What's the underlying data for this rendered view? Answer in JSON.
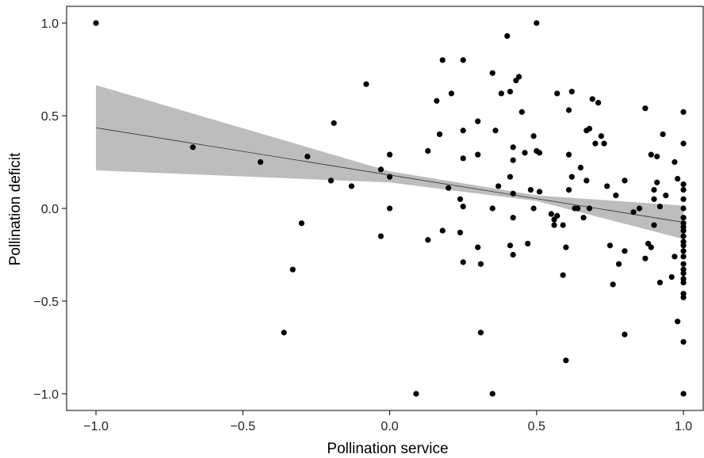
{
  "chart_data": {
    "type": "scatter",
    "xlabel": "Pollination service",
    "ylabel": "Pollination deficit",
    "xlim": [
      -1.1,
      1.07
    ],
    "ylim": [
      -1.09,
      1.09
    ],
    "x_ticks": [
      -1.0,
      -0.5,
      0.0,
      0.5,
      1.0
    ],
    "x_tick_labels": [
      "−1.0",
      "−0.5",
      "0.0",
      "0.5",
      "1.0"
    ],
    "y_ticks": [
      -1.0,
      -0.5,
      0.0,
      0.5,
      1.0
    ],
    "y_tick_labels": [
      "−1.0",
      "−0.5",
      "0.0",
      "0.5",
      "1.0"
    ],
    "grid": false,
    "legend": "none",
    "colors": {
      "points": "#000000",
      "fit_line": "#333333",
      "confidence_band": "#bdbdbd"
    },
    "fit": {
      "line": [
        [
          -1.0,
          0.435
        ],
        [
          1.0,
          -0.075
        ]
      ],
      "ci_upper": [
        [
          -1.0,
          0.665
        ],
        [
          0.0,
          0.2
        ],
        [
          0.5,
          0.07
        ],
        [
          1.0,
          0.015
        ]
      ],
      "ci_lower": [
        [
          -1.0,
          0.205
        ],
        [
          0.0,
          0.14
        ],
        [
          0.5,
          0.04
        ],
        [
          1.0,
          -0.165
        ]
      ]
    },
    "points": [
      [
        -1.0,
        1.0
      ],
      [
        -0.67,
        0.33
      ],
      [
        -0.44,
        0.25
      ],
      [
        -0.36,
        -0.67
      ],
      [
        -0.33,
        -0.33
      ],
      [
        -0.3,
        -0.08
      ],
      [
        -0.28,
        0.28
      ],
      [
        -0.2,
        0.15
      ],
      [
        -0.19,
        0.46
      ],
      [
        -0.13,
        0.12
      ],
      [
        -0.08,
        0.67
      ],
      [
        -0.03,
        0.21
      ],
      [
        -0.03,
        -0.15
      ],
      [
        0.0,
        0.0
      ],
      [
        0.0,
        0.17
      ],
      [
        0.0,
        0.29
      ],
      [
        0.09,
        -1.0
      ],
      [
        0.13,
        0.31
      ],
      [
        0.13,
        -0.17
      ],
      [
        0.16,
        0.58
      ],
      [
        0.17,
        0.4
      ],
      [
        0.18,
        0.8
      ],
      [
        0.18,
        -0.12
      ],
      [
        0.2,
        0.11
      ],
      [
        0.21,
        0.62
      ],
      [
        0.24,
        -0.13
      ],
      [
        0.24,
        0.05
      ],
      [
        0.25,
        0.27
      ],
      [
        0.25,
        0.42
      ],
      [
        0.25,
        -0.29
      ],
      [
        0.25,
        0.8
      ],
      [
        0.25,
        0.01
      ],
      [
        0.3,
        0.47
      ],
      [
        0.3,
        0.29
      ],
      [
        0.3,
        -0.21
      ],
      [
        0.31,
        -0.3
      ],
      [
        0.31,
        -0.67
      ],
      [
        0.35,
        0.73
      ],
      [
        0.35,
        0.0
      ],
      [
        0.35,
        -1.0
      ],
      [
        0.36,
        0.42
      ],
      [
        0.37,
        0.12
      ],
      [
        0.38,
        0.62
      ],
      [
        0.4,
        0.93
      ],
      [
        0.41,
        0.63
      ],
      [
        0.41,
        0.17
      ],
      [
        0.41,
        -0.2
      ],
      [
        0.42,
        0.33
      ],
      [
        0.42,
        0.26
      ],
      [
        0.42,
        0.08
      ],
      [
        0.42,
        -0.25
      ],
      [
        0.42,
        -0.05
      ],
      [
        0.43,
        0.69
      ],
      [
        0.44,
        0.71
      ],
      [
        0.45,
        0.52
      ],
      [
        0.46,
        0.3
      ],
      [
        0.47,
        -0.19
      ],
      [
        0.48,
        0.1
      ],
      [
        0.49,
        0.39
      ],
      [
        0.49,
        0.0
      ],
      [
        0.5,
        1.0
      ],
      [
        0.5,
        0.31
      ],
      [
        0.51,
        0.3
      ],
      [
        0.51,
        0.09
      ],
      [
        0.55,
        -0.03
      ],
      [
        0.56,
        -0.06
      ],
      [
        0.56,
        -0.09
      ],
      [
        0.57,
        0.62
      ],
      [
        0.57,
        -0.04
      ],
      [
        0.59,
        -0.09
      ],
      [
        0.59,
        -0.36
      ],
      [
        0.6,
        -0.21
      ],
      [
        0.6,
        -0.82
      ],
      [
        0.61,
        0.53
      ],
      [
        0.61,
        0.29
      ],
      [
        0.61,
        0.1
      ],
      [
        0.62,
        0.63
      ],
      [
        0.62,
        0.17
      ],
      [
        0.63,
        0.0
      ],
      [
        0.64,
        0.0
      ],
      [
        0.65,
        0.22
      ],
      [
        0.66,
        -0.05
      ],
      [
        0.67,
        0.42
      ],
      [
        0.67,
        0.15
      ],
      [
        0.68,
        0.43
      ],
      [
        0.68,
        0.0
      ],
      [
        0.69,
        0.59
      ],
      [
        0.7,
        0.35
      ],
      [
        0.71,
        0.57
      ],
      [
        0.72,
        0.39
      ],
      [
        0.73,
        0.35
      ],
      [
        0.74,
        0.12
      ],
      [
        0.75,
        -0.2
      ],
      [
        0.76,
        -0.41
      ],
      [
        0.77,
        0.07
      ],
      [
        0.78,
        -0.3
      ],
      [
        0.8,
        0.15
      ],
      [
        0.8,
        -0.23
      ],
      [
        0.8,
        -0.68
      ],
      [
        0.83,
        -0.02
      ],
      [
        0.85,
        0.0
      ],
      [
        0.87,
        0.54
      ],
      [
        0.87,
        -0.27
      ],
      [
        0.88,
        -0.19
      ],
      [
        0.89,
        0.29
      ],
      [
        0.89,
        -0.21
      ],
      [
        0.9,
        0.1
      ],
      [
        0.9,
        0.05
      ],
      [
        0.9,
        -0.09
      ],
      [
        0.91,
        0.14
      ],
      [
        0.91,
        0.28
      ],
      [
        0.92,
        0.01
      ],
      [
        0.92,
        -0.4
      ],
      [
        0.93,
        0.4
      ],
      [
        0.94,
        0.07
      ],
      [
        0.96,
        -0.37
      ],
      [
        0.97,
        0.25
      ],
      [
        0.97,
        -0.26
      ],
      [
        0.98,
        -0.61
      ],
      [
        0.98,
        0.16
      ],
      [
        1.0,
        0.52
      ],
      [
        1.0,
        0.35
      ],
      [
        1.0,
        0.13
      ],
      [
        1.0,
        0.1
      ],
      [
        1.0,
        0.05
      ],
      [
        1.0,
        0.0
      ],
      [
        1.0,
        -0.05
      ],
      [
        1.0,
        -0.08
      ],
      [
        1.0,
        -0.1
      ],
      [
        1.0,
        -0.12
      ],
      [
        1.0,
        -0.15
      ],
      [
        1.0,
        -0.18
      ],
      [
        1.0,
        -0.2
      ],
      [
        1.0,
        -0.23
      ],
      [
        1.0,
        -0.26
      ],
      [
        1.0,
        -0.3
      ],
      [
        1.0,
        -0.33
      ],
      [
        1.0,
        -0.35
      ],
      [
        1.0,
        -0.38
      ],
      [
        1.0,
        -0.4
      ],
      [
        1.0,
        -0.46
      ],
      [
        1.0,
        -0.48
      ],
      [
        1.0,
        -0.72
      ],
      [
        1.0,
        -1.0
      ]
    ]
  }
}
